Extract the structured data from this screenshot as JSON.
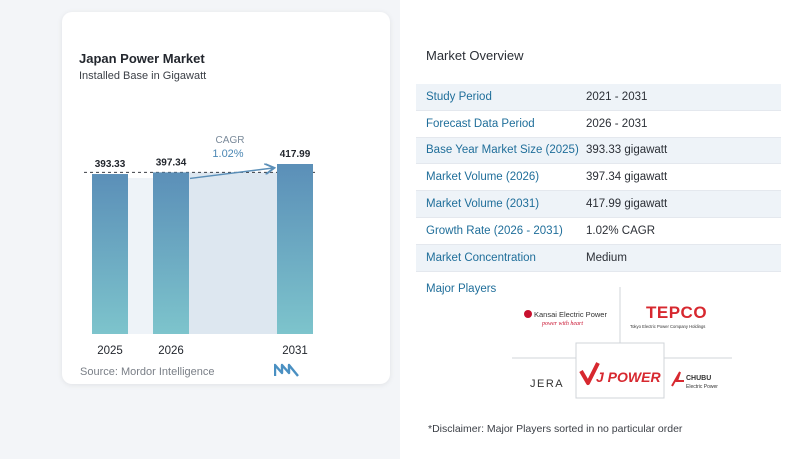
{
  "chart": {
    "title": "Japan Power Market",
    "subtitle": "Installed Base in Gigawatt",
    "source": "Source:  Mordor Intelligence",
    "cagr_label": "CAGR",
    "cagr_value": "1.02%"
  },
  "chart_data": {
    "type": "bar",
    "title": "Japan Power Market",
    "subtitle": "Installed Base in Gigawatt",
    "categories": [
      "2025",
      "2026",
      "2031"
    ],
    "values": [
      393.33,
      397.34,
      417.99
    ],
    "value_labels": [
      "393.33",
      "397.34",
      "417.99"
    ],
    "annotation": "CAGR 1.02%",
    "colors": {
      "bar_top": "#5b8fb8",
      "bar_bottom": "#7dc4cc",
      "band": "#dde7f0",
      "arrow": "#5b8fb8"
    }
  },
  "overview": {
    "title": "Market Overview",
    "rows": [
      {
        "label": "Study Period",
        "value": "2021 - 2031"
      },
      {
        "label": "Forecast Data Period",
        "value": "2026 - 2031"
      },
      {
        "label": "Base Year Market Size (2025)",
        "value": "393.33 gigawatt"
      },
      {
        "label": "Market Volume (2026)",
        "value": "397.34 gigawatt"
      },
      {
        "label": "Market Volume (2031)",
        "value": "417.99 gigawatt"
      },
      {
        "label": "Growth Rate (2026 - 2031)",
        "value": "1.02% CAGR"
      },
      {
        "label": "Market Concentration",
        "value": "Medium"
      }
    ]
  },
  "players": {
    "title": "Major Players",
    "kansai_name": "Kansai Electric Power",
    "kansai_tagline": "power with heart",
    "tepco_name": "TEPCO",
    "tepco_sub": "Tokyo Electric Power Company Holdings",
    "jera_name": "JERA",
    "jpower_name": "J POWER",
    "chubu_name": "CHUBU",
    "chubu_sub": "Electric Power"
  },
  "disclaimer": "*Disclaimer: Major Players sorted in no particular order"
}
